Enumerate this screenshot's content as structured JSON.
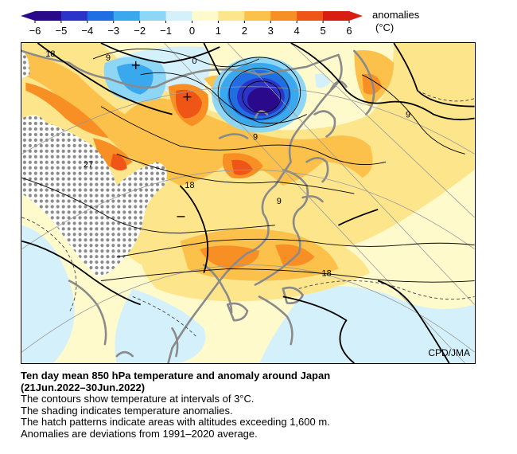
{
  "colorbar": {
    "ticks": [
      "−6",
      "−5",
      "−4",
      "−3",
      "−2",
      "−1",
      "0",
      "1",
      "2",
      "3",
      "4",
      "5",
      "6"
    ],
    "colors": [
      "#2a0a8a",
      "#2b33c8",
      "#1f6fe3",
      "#3aa8ec",
      "#8ed6f5",
      "#d4f1fb",
      "#fffacc",
      "#fde58c",
      "#fbc14a",
      "#f78f24",
      "#ef5517",
      "#d81e10"
    ],
    "title_line1": "anomalies",
    "title_line2": "(°C)"
  },
  "map": {
    "contour_labels": [
      "18",
      "9",
      "0",
      "9",
      "27",
      "18",
      "9",
      "9",
      "18"
    ],
    "credit": "CPD/JMA"
  },
  "caption": {
    "title": "Ten day mean 850 hPa temperature and anomaly around Japan",
    "period": "(21Jun.2022–30Jun.2022)",
    "line1": "The contours show temperature at intervals of 3°C.",
    "line2": "The shading indicates temperature anomalies.",
    "line3": "The hatch patterns indicate areas with altitudes exceeding 1,600 m.",
    "line4": "Anomalies are deviations from 1991–2020 average."
  }
}
